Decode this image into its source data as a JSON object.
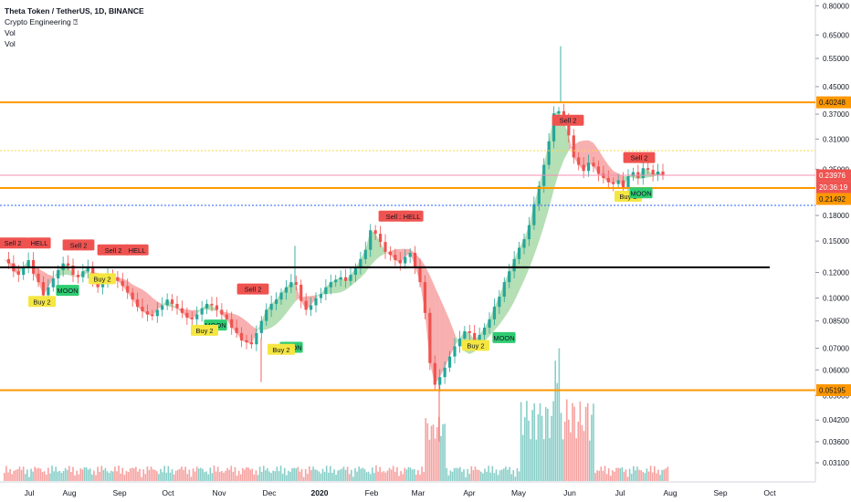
{
  "header": {
    "symbol_line": "Theta Token / TetherUS, 1D, BINANCE",
    "indicators": [
      "Crypto Engineering ⍰",
      "Vol",
      "Vol"
    ]
  },
  "colors": {
    "up": "#26a69a",
    "down": "#ef5350",
    "horizontal_level": "#ff9800",
    "trend_line": "#000000",
    "cloud_bull": "#5cb85c",
    "cloud_bear": "#f26d6d",
    "sell_label": "#ef5350",
    "buy_label": "#f5e642",
    "moon_label": "#2ecc71",
    "price_line": "#f48fb1",
    "dotted_resistance": "#f9d848",
    "dotted_support": "#2962ff"
  },
  "chart_data": {
    "type": "line",
    "y_scale": "log",
    "y_ticks": [
      "0.80000",
      "0.65000",
      "0.55000",
      "0.45000",
      "0.37000",
      "0.31000",
      "0.25000",
      "0.18000",
      "0.15000",
      "0.12000",
      "0.10000",
      "0.08500",
      "0.07000",
      "0.06000",
      "0.05000",
      "0.04200",
      "0.03600",
      "0.03100"
    ],
    "x_ticks": [
      "Jul",
      "Aug",
      "Sep",
      "Oct",
      "Nov",
      "Dec",
      "2020",
      "Feb",
      "Mar",
      "Apr",
      "May",
      "Jun",
      "Jul",
      "Aug",
      "Sep",
      "Oct"
    ],
    "price_labels": {
      "level_top": "0.40248",
      "current": "0.23976",
      "countdown": "20:36:19",
      "support": "0.21492",
      "level_bottom": "0.05195"
    },
    "horizontal_levels": [
      0.40248,
      0.2187,
      0.05195
    ],
    "trend_line_value": 0.1245,
    "signals": [
      {
        "text": "Sell 2",
        "type": "sell",
        "month": "Jul",
        "value": 0.147
      },
      {
        "text": "HELL",
        "type": "sell",
        "month": "Jul",
        "value": 0.147
      },
      {
        "text": "Buy 2",
        "type": "buy",
        "month": "Jul",
        "value": 0.097
      },
      {
        "text": "MOON",
        "type": "moon",
        "month": "Aug",
        "value": 0.105
      },
      {
        "text": "Sell 2",
        "type": "sell",
        "month": "Aug",
        "value": 0.145
      },
      {
        "text": "Buy 2",
        "type": "buy",
        "month": "Aug",
        "value": 0.114
      },
      {
        "text": "Sell 2",
        "type": "sell",
        "month": "Sep",
        "value": 0.14
      },
      {
        "text": "HELL",
        "type": "sell",
        "month": "Sep",
        "value": 0.14
      },
      {
        "text": "Sell 2",
        "type": "sell",
        "month": "Nov",
        "value": 0.106
      },
      {
        "text": "MOON",
        "type": "moon",
        "month": "Nov",
        "value": 0.082
      },
      {
        "text": "Buy 2",
        "type": "buy",
        "month": "Nov",
        "value": 0.079
      },
      {
        "text": "MOON",
        "type": "moon",
        "month": "Dec",
        "value": 0.07
      },
      {
        "text": "Buy 2",
        "type": "buy",
        "month": "Dec",
        "value": 0.069
      },
      {
        "text": "Sell 2",
        "type": "sell",
        "month": "Feb",
        "value": 0.178
      },
      {
        "text": "HELL",
        "type": "sell",
        "month": "Feb",
        "value": 0.178
      },
      {
        "text": "MOON",
        "type": "moon",
        "month": "Apr",
        "value": 0.075
      },
      {
        "text": "Buy 2",
        "type": "buy",
        "month": "Apr",
        "value": 0.071
      },
      {
        "text": "Sell 2",
        "type": "sell",
        "month": "Jun",
        "value": 0.352
      },
      {
        "text": "Sell 2",
        "type": "sell",
        "month": "Jul",
        "value": 0.27
      },
      {
        "text": "Buy 2",
        "type": "buy",
        "month": "Jul",
        "value": 0.205
      },
      {
        "text": "MOON",
        "type": "moon",
        "month": "Jul",
        "value": 0.21
      }
    ],
    "series": [
      {
        "values": [
          0.132,
          0.128,
          0.121,
          0.118,
          0.125,
          0.131,
          0.119,
          0.112,
          0.102,
          0.108,
          0.115,
          0.122,
          0.128,
          0.126,
          0.118,
          0.116,
          0.121,
          0.124,
          0.113,
          0.108,
          0.112,
          0.118,
          0.116,
          0.113,
          0.109,
          0.104,
          0.099,
          0.094,
          0.091,
          0.089,
          0.088,
          0.092,
          0.095,
          0.099,
          0.096,
          0.093,
          0.09,
          0.087,
          0.086,
          0.089,
          0.093,
          0.096,
          0.095,
          0.092,
          0.089,
          0.086,
          0.081,
          0.078,
          0.074,
          0.073,
          0.072,
          0.078,
          0.085,
          0.092,
          0.096,
          0.099,
          0.104,
          0.108,
          0.112,
          0.11,
          0.098,
          0.092,
          0.095,
          0.1,
          0.103,
          0.108,
          0.112,
          0.114,
          0.116,
          0.113,
          0.118,
          0.124,
          0.132,
          0.141,
          0.162,
          0.158,
          0.149,
          0.139,
          0.136,
          0.131,
          0.128,
          0.134,
          0.138,
          0.125,
          0.112,
          0.09,
          0.063,
          0.054,
          0.057,
          0.061,
          0.066,
          0.071,
          0.075,
          0.079,
          0.078,
          0.074,
          0.077,
          0.081,
          0.086,
          0.094,
          0.101,
          0.112,
          0.121,
          0.132,
          0.143,
          0.152,
          0.168,
          0.195,
          0.222,
          0.258,
          0.305,
          0.372,
          0.378,
          0.352,
          0.318,
          0.272,
          0.258,
          0.247,
          0.262,
          0.255,
          0.242,
          0.235,
          0.228,
          0.225,
          0.231,
          0.219,
          0.238,
          0.245,
          0.235,
          0.252,
          0.249,
          0.241,
          0.246,
          0.24
        ]
      }
    ]
  }
}
